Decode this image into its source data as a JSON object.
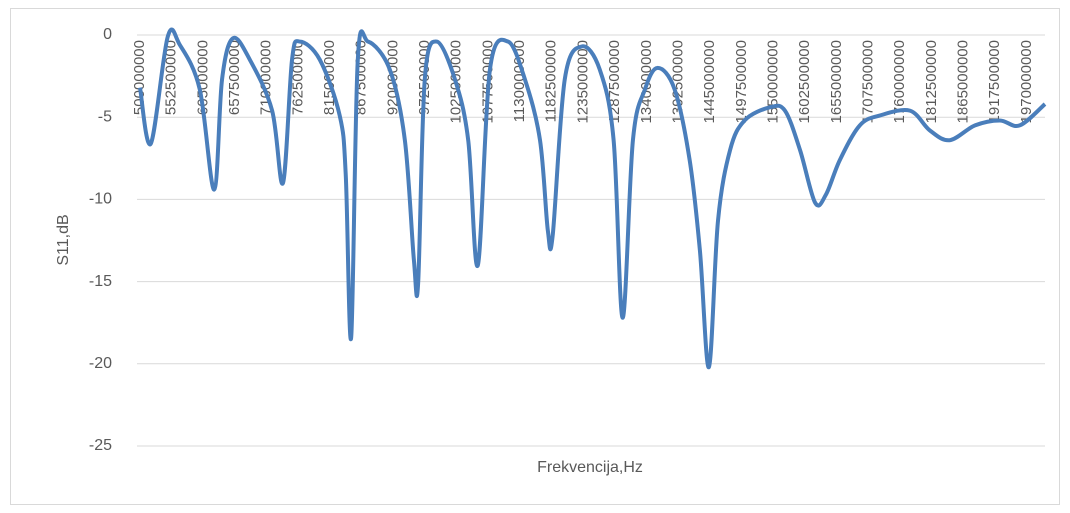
{
  "chart_data": {
    "type": "line",
    "x_label": "Frekvencija,Hz",
    "y_label": "S11,dB",
    "x": [
      500000000,
      518000000,
      546000000,
      566000000,
      599000000,
      623000000,
      636000000,
      654000000,
      682000000,
      719000000,
      737000000,
      752000000,
      765000000,
      798000000,
      831000000,
      841000000,
      850000000,
      861000000,
      878000000,
      914000000,
      939000000,
      954000000,
      961000000,
      972000000,
      992000000,
      1022000000,
      1044000000,
      1060000000,
      1080000000,
      1110000000,
      1138000000,
      1163000000,
      1176000000,
      1184000000,
      1204000000,
      1232000000,
      1262000000,
      1285000000,
      1300000000,
      1317000000,
      1337000000,
      1358000000,
      1386000000,
      1411000000,
      1428000000,
      1443000000,
      1458000000,
      1478000000,
      1502000000,
      1544000000,
      1569000000,
      1594000000,
      1619000000,
      1637000000,
      1660000000,
      1693000000,
      1726000000,
      1776000000,
      1809000000,
      1842000000,
      1884000000,
      1925000000,
      1958000000,
      2000000000
    ],
    "series": [
      {
        "name": "S11",
        "color": "#4a7ebb",
        "values": [
          -3.2,
          -6.6,
          -0.1,
          -0.6,
          -3.3,
          -9.4,
          -2.7,
          -0.2,
          -1.5,
          -4.6,
          -9.0,
          -1.5,
          -0.4,
          -1.5,
          -4.9,
          -8.5,
          -18.4,
          -1.5,
          -0.4,
          -2.1,
          -6.4,
          -13.7,
          -15.1,
          -2.7,
          -0.4,
          -2.7,
          -6.4,
          -14.0,
          -2.1,
          -0.4,
          -2.7,
          -6.4,
          -11.9,
          -12.2,
          -2.7,
          -0.7,
          -2.1,
          -6.4,
          -17.2,
          -6.4,
          -3.3,
          -2.0,
          -3.3,
          -7.6,
          -13.1,
          -20.2,
          -11.3,
          -7.0,
          -5.2,
          -4.4,
          -4.6,
          -7.0,
          -10.2,
          -9.7,
          -7.6,
          -5.5,
          -4.9,
          -4.6,
          -5.8,
          -6.4,
          -5.5,
          -5.2,
          -5.5,
          -4.2
        ]
      }
    ],
    "xlim": [
      500000000,
      2000000000
    ],
    "xticks": [
      500000000,
      552500000,
      605000000,
      657500000,
      710000000,
      762500000,
      815000000,
      867500000,
      920000000,
      972500000,
      1025000000,
      1077500000,
      1130000000,
      1182500000,
      1235000000,
      1287500000,
      1340000000,
      1392500000,
      1445000000,
      1497500000,
      1550000000,
      1602500000,
      1655000000,
      1707500000,
      1760000000,
      1812500000,
      1865000000,
      1917500000,
      1970000000
    ],
    "ylim": [
      -25,
      0
    ],
    "yticks": [
      0,
      -5,
      -10,
      -15,
      -20,
      -25
    ],
    "grid": true
  }
}
